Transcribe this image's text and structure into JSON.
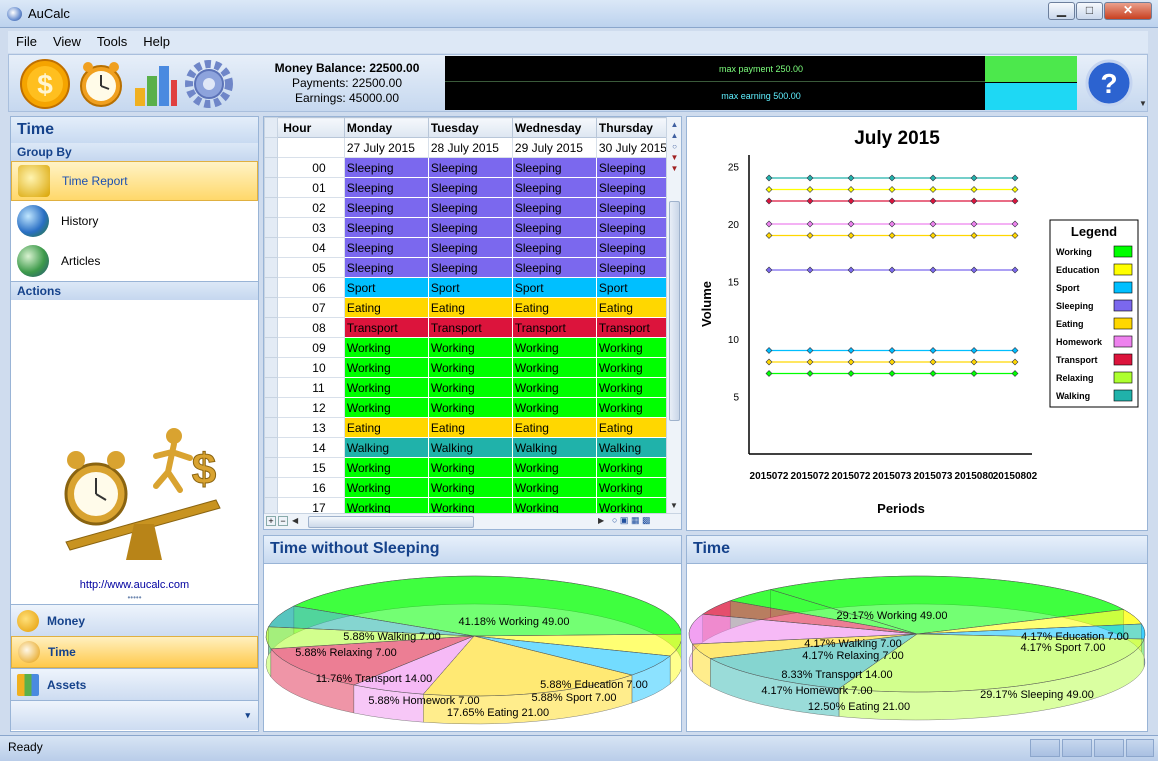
{
  "window": {
    "title": "AuCalc",
    "minimize": "▁",
    "maximize": "□",
    "close": "✕"
  },
  "menu": [
    {
      "label": "File"
    },
    {
      "label": "View"
    },
    {
      "label": "Tools"
    },
    {
      "label": "Help"
    }
  ],
  "toolbar": {
    "icons": [
      "dollar-coin-icon",
      "alarm-clock-icon",
      "bar-chart-icon",
      "gear-icon"
    ],
    "balance": "Money Balance: 22500.00",
    "payments": "Payments: 22500.00",
    "earnings": "Earnings: 45000.00",
    "meter_payment": "max payment 250.00",
    "meter_earning": "max earning 500.00",
    "help_icon": "help-icon"
  },
  "left_panel": {
    "title": "Time",
    "group_by": "Group By",
    "items": [
      {
        "label": "Time Report",
        "icon": "time-report-icon",
        "selected": true
      },
      {
        "label": "History",
        "icon": "globe-history-icon",
        "selected": false
      },
      {
        "label": "Articles",
        "icon": "globe-articles-icon",
        "selected": false
      }
    ],
    "actions": "Actions",
    "url": "http://www.aucalc.com",
    "bottom_nav": [
      {
        "label": "Money",
        "icon": "money-coin-icon",
        "selected": false
      },
      {
        "label": "Time",
        "icon": "time-clock-icon",
        "selected": true
      },
      {
        "label": "Assets",
        "icon": "assets-chart-icon",
        "selected": false
      }
    ]
  },
  "colors": {
    "Sleeping": "#7b68ee",
    "Sport": "#00bfff",
    "Eating": "#ffd700",
    "Transport": "#dc143c",
    "Working": "#00ff00",
    "Walking": "#20b2aa",
    "Education": "#ffff00",
    "Homework": "#ee82ee",
    "Relaxing": "#adff2f"
  },
  "grid": {
    "columns": [
      "Hour",
      "Monday",
      "Tuesday",
      "Wednesday",
      "Thursday"
    ],
    "dates": [
      "27 July 2015",
      "28 July 2015",
      "29 July 2015",
      "30 July 2015"
    ],
    "rows": [
      {
        "hour": "00",
        "activity": "Sleeping"
      },
      {
        "hour": "01",
        "activity": "Sleeping"
      },
      {
        "hour": "02",
        "activity": "Sleeping"
      },
      {
        "hour": "03",
        "activity": "Sleeping"
      },
      {
        "hour": "04",
        "activity": "Sleeping"
      },
      {
        "hour": "05",
        "activity": "Sleeping"
      },
      {
        "hour": "06",
        "activity": "Sport"
      },
      {
        "hour": "07",
        "activity": "Eating"
      },
      {
        "hour": "08",
        "activity": "Transport"
      },
      {
        "hour": "09",
        "activity": "Working"
      },
      {
        "hour": "10",
        "activity": "Working"
      },
      {
        "hour": "11",
        "activity": "Working"
      },
      {
        "hour": "12",
        "activity": "Working"
      },
      {
        "hour": "13",
        "activity": "Eating"
      },
      {
        "hour": "14",
        "activity": "Walking"
      },
      {
        "hour": "15",
        "activity": "Working"
      },
      {
        "hour": "16",
        "activity": "Working"
      },
      {
        "hour": "17",
        "activity": "Working"
      }
    ]
  },
  "chart_data": [
    {
      "type": "line",
      "title": "July 2015",
      "xlabel": "Periods",
      "ylabel": "Volume",
      "x": [
        "2015072",
        "2015072",
        "2015072",
        "2015073",
        "2015073",
        "2015080",
        "20150802"
      ],
      "yticks": [
        5,
        10,
        15,
        20,
        25
      ],
      "ylim": [
        0,
        26
      ],
      "legend_title": "Legend",
      "legend_position": "right",
      "series": [
        {
          "name": "Working",
          "values": [
            9,
            9,
            9,
            9,
            9,
            9,
            9
          ],
          "color": "#00bfff"
        },
        {
          "name": "Education",
          "values": [
            23,
            23,
            23,
            23,
            23,
            23,
            23
          ],
          "color": "#ffff00"
        },
        {
          "name": "Sport",
          "values": [
            24,
            24,
            24,
            24,
            24,
            24,
            24
          ],
          "color": "#20b2aa"
        },
        {
          "name": "Sleeping",
          "values": [
            16,
            16,
            16,
            16,
            16,
            16,
            16
          ],
          "color": "#7b68ee"
        },
        {
          "name": "Eating",
          "values": [
            19,
            19,
            19,
            19,
            19,
            19,
            19
          ],
          "color": "#ffd700"
        },
        {
          "name": "Homework",
          "values": [
            20,
            20,
            20,
            20,
            20,
            20,
            20
          ],
          "color": "#ee82ee"
        },
        {
          "name": "Transport",
          "values": [
            22,
            22,
            22,
            22,
            22,
            22,
            22
          ],
          "color": "#dc143c"
        },
        {
          "name": "Relaxing",
          "values": [
            8,
            8,
            8,
            8,
            8,
            8,
            8
          ],
          "color": "#ffd700"
        },
        {
          "name": "Walking",
          "values": [
            7,
            7,
            7,
            7,
            7,
            7,
            7
          ],
          "color": "#00ff00"
        }
      ],
      "legend": [
        {
          "name": "Working",
          "color": "#00ff00"
        },
        {
          "name": "Education",
          "color": "#ffff00"
        },
        {
          "name": "Sport",
          "color": "#00bfff"
        },
        {
          "name": "Sleeping",
          "color": "#7b68ee"
        },
        {
          "name": "Eating",
          "color": "#ffd700"
        },
        {
          "name": "Homework",
          "color": "#ee82ee"
        },
        {
          "name": "Transport",
          "color": "#dc143c"
        },
        {
          "name": "Relaxing",
          "color": "#adff2f"
        },
        {
          "name": "Walking",
          "color": "#20b2aa"
        }
      ]
    },
    {
      "type": "pie",
      "title": "Time without Sleeping",
      "slices": [
        {
          "name": "Working",
          "value": 49.0,
          "percent": 41.18,
          "label": "41.18% Working 49.00",
          "color": "#00ff00"
        },
        {
          "name": "Education",
          "value": 7.0,
          "percent": 5.88,
          "label": "5.88% Education 7.00",
          "color": "#ffff00"
        },
        {
          "name": "Sport",
          "value": 7.0,
          "percent": 5.88,
          "label": "5.88% Sport 7.00",
          "color": "#00bfff"
        },
        {
          "name": "Eating",
          "value": 21.0,
          "percent": 17.65,
          "label": "17.65% Eating 21.00",
          "color": "#ffd700"
        },
        {
          "name": "Homework",
          "value": 7.0,
          "percent": 5.88,
          "label": "5.88% Homework 7.00",
          "color": "#ee82ee"
        },
        {
          "name": "Transport",
          "value": 14.0,
          "percent": 11.76,
          "label": "11.76% Transport 14.00",
          "color": "#dc143c"
        },
        {
          "name": "Relaxing",
          "value": 7.0,
          "percent": 5.88,
          "label": "5.88% Relaxing 7.00",
          "color": "#adff2f"
        },
        {
          "name": "Walking",
          "value": 7.0,
          "percent": 5.88,
          "label": "5.88% Walking 7.00",
          "color": "#20b2aa"
        }
      ]
    },
    {
      "type": "pie",
      "title": "Time",
      "slices": [
        {
          "name": "Working",
          "value": 49.0,
          "percent": 29.17,
          "label": "29.17% Working 49.00",
          "color": "#00ff00"
        },
        {
          "name": "Education",
          "value": 7.0,
          "percent": 4.17,
          "label": "4.17% Education 7.00",
          "color": "#ffff00"
        },
        {
          "name": "Sport",
          "value": 7.0,
          "percent": 4.17,
          "label": "4.17% Sport 7.00",
          "color": "#00bfff"
        },
        {
          "name": "Sleeping",
          "value": 49.0,
          "percent": 29.17,
          "label": "29.17% Sleeping 49.00",
          "color": "#adff2f"
        },
        {
          "name": "Eating",
          "value": 21.0,
          "percent": 12.5,
          "label": "12.50% Eating 21.00",
          "color": "#20b2aa"
        },
        {
          "name": "Homework",
          "value": 7.0,
          "percent": 4.17,
          "label": "4.17% Homework 7.00",
          "color": "#ffd700"
        },
        {
          "name": "Transport",
          "value": 14.0,
          "percent": 8.33,
          "label": "8.33% Transport 14.00",
          "color": "#ee82ee"
        },
        {
          "name": "Relaxing",
          "value": 7.0,
          "percent": 4.17,
          "label": "4.17% Relaxing 7.00",
          "color": "#dc143c"
        },
        {
          "name": "Walking",
          "value": 7.0,
          "percent": 4.17,
          "label": "4.17% Walking 7.00",
          "color": "#00ff00"
        }
      ]
    }
  ],
  "status": {
    "text": "Ready"
  }
}
